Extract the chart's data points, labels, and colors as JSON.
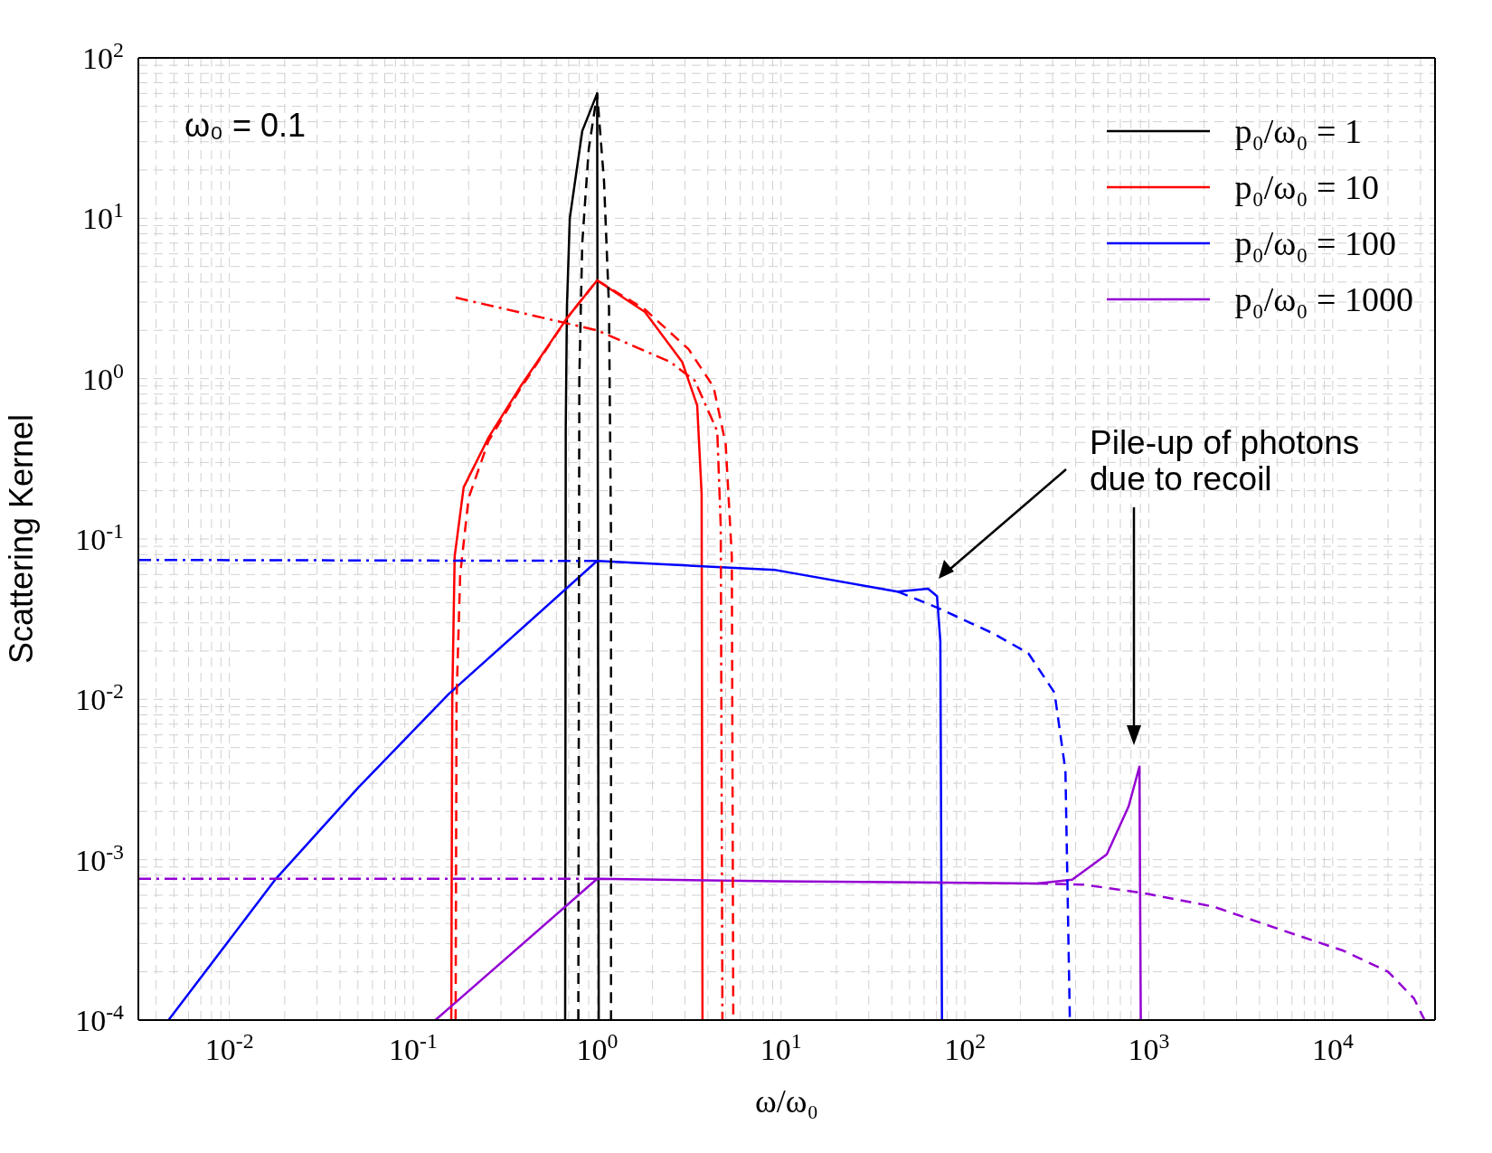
{
  "chart_data": {
    "type": "line",
    "xlabel": "ω/ω₀",
    "ylabel": "Scattering Kernel",
    "log": "xy",
    "grid": true,
    "legend": "top right",
    "xlim": [
      0.0032,
      36000
    ],
    "xticks": [
      {
        "value": 0.01,
        "label": "10$^{-2}$"
      },
      {
        "value": 0.1,
        "label": "10$^{-1}$"
      },
      {
        "value": 1,
        "label": "10$^{0}$"
      },
      {
        "value": 10,
        "label": "10$^{1}$"
      },
      {
        "value": 100,
        "label": "10$^{2}$"
      },
      {
        "value": 1000,
        "label": "10$^{3}$"
      },
      {
        "value": 10000,
        "label": "10$^{4}$"
      }
    ],
    "ylim": [
      0.0001,
      100
    ],
    "yticks": [
      {
        "value": 0.0001,
        "label": "10$^{-4}$"
      },
      {
        "value": 0.001,
        "label": "10$^{-3}$"
      },
      {
        "value": 0.01,
        "label": "10$^{-2}$"
      },
      {
        "value": 0.1,
        "label": "10$^{-1}$"
      },
      {
        "value": 1,
        "label": "10$^{0}$"
      },
      {
        "value": 10,
        "label": "10$^{1}$"
      },
      {
        "value": 100,
        "label": "10$^{2}$"
      }
    ],
    "annotations": [
      "ω₀ = 0.1",
      "Pile-up of photons due to recoil"
    ],
    "series": [
      {
        "name": "p₀/ω₀ = 1",
        "color": "#000000",
        "line_style": "solid",
        "x": [
          0.67,
          0.675,
          0.685,
          0.71,
          0.83,
          1.0,
          1.02
        ],
        "values": [
          0.0001,
          0.5,
          2.8,
          10,
          35,
          60,
          0.0001
        ]
      },
      {
        "name": "p₀/ω₀ = 10",
        "color": "#ff0000",
        "line_style": "solid",
        "x": [
          0.161,
          0.163,
          0.168,
          0.188,
          0.257,
          0.381,
          0.685,
          1.0,
          1.82,
          2.9,
          3.5,
          3.7,
          3.74
        ],
        "values": [
          0.0001,
          0.01,
          0.078,
          0.21,
          0.43,
          0.885,
          2.38,
          4.1,
          2.6,
          1.27,
          0.68,
          0.19,
          0.0001
        ]
      },
      {
        "name": "p₀/ω₀ = 100",
        "color": "#0000ff",
        "line_style": "solid",
        "x": [
          0.00467,
          0.0179,
          0.05,
          0.156,
          1.0,
          9.35,
          43,
          63,
          70.5,
          73.5,
          75
        ],
        "values": [
          0.0001,
          0.00076,
          0.0028,
          0.0108,
          0.073,
          0.064,
          0.047,
          0.049,
          0.044,
          0.023,
          0.0001
        ]
      },
      {
        "name": "p₀/ω₀ = 1000",
        "color": "#9400d3",
        "line_style": "solid",
        "x": [
          0.132,
          1.0,
          9.35,
          247,
          383,
          591,
          776,
          889,
          904
        ],
        "values": [
          0.0001,
          0.00076,
          0.000735,
          0.00071,
          0.00075,
          0.00108,
          0.00215,
          0.0038,
          0.0001
        ]
      },
      {
        "color": "#000000",
        "line_style": "dashed",
        "x": [
          0.79,
          0.8,
          0.83,
          0.9,
          1.0,
          1.09,
          1.16,
          1.19,
          1.19
        ],
        "values": [
          0.0001,
          1,
          7,
          27,
          60,
          17,
          2.8,
          0.1,
          0.0001
        ]
      },
      {
        "color": "#ff0000",
        "line_style": "dashed",
        "x": [
          0.17,
          0.172,
          0.18,
          0.2,
          0.257,
          0.381,
          0.685,
          1.0,
          1.82,
          3.15,
          4.3,
          5.0,
          5.4,
          5.5
        ],
        "values": [
          0.0001,
          0.01,
          0.06,
          0.18,
          0.41,
          0.86,
          2.38,
          4.1,
          2.7,
          1.52,
          0.885,
          0.39,
          0.078,
          0.0001
        ]
      },
      {
        "color": "#ff0000",
        "line_style": "dashdot",
        "x": [
          0.17,
          1.0,
          2.5,
          3.4,
          4.5,
          4.7,
          4.8
        ],
        "values": [
          3.2,
          2.0,
          1.27,
          0.97,
          0.47,
          0.12,
          0.0001
        ]
      },
      {
        "color": "#0000ff",
        "line_style": "dashed",
        "x": [
          43,
          70,
          143,
          221,
          307,
          352,
          372
        ],
        "values": [
          0.047,
          0.0375,
          0.0257,
          0.0194,
          0.011,
          0.0036,
          0.0001
        ]
      },
      {
        "color": "#0000ff",
        "line_style": "dashdot",
        "x": [
          0.0032,
          1.0
        ],
        "values": [
          0.074,
          0.073
        ]
      },
      {
        "color": "#9400d3",
        "line_style": "dashed",
        "x": [
          247,
          437,
          930,
          2240,
          5070,
          11500,
          20000,
          27600,
          31600
        ],
        "values": [
          0.00071,
          0.0007,
          0.00062,
          0.00051,
          0.00037,
          0.00027,
          0.0002,
          0.000137,
          0.0001
        ]
      },
      {
        "color": "#9400d3",
        "line_style": "dashdot",
        "x": [
          0.0032,
          1.0
        ],
        "values": [
          0.00076,
          0.00076
        ]
      }
    ]
  }
}
